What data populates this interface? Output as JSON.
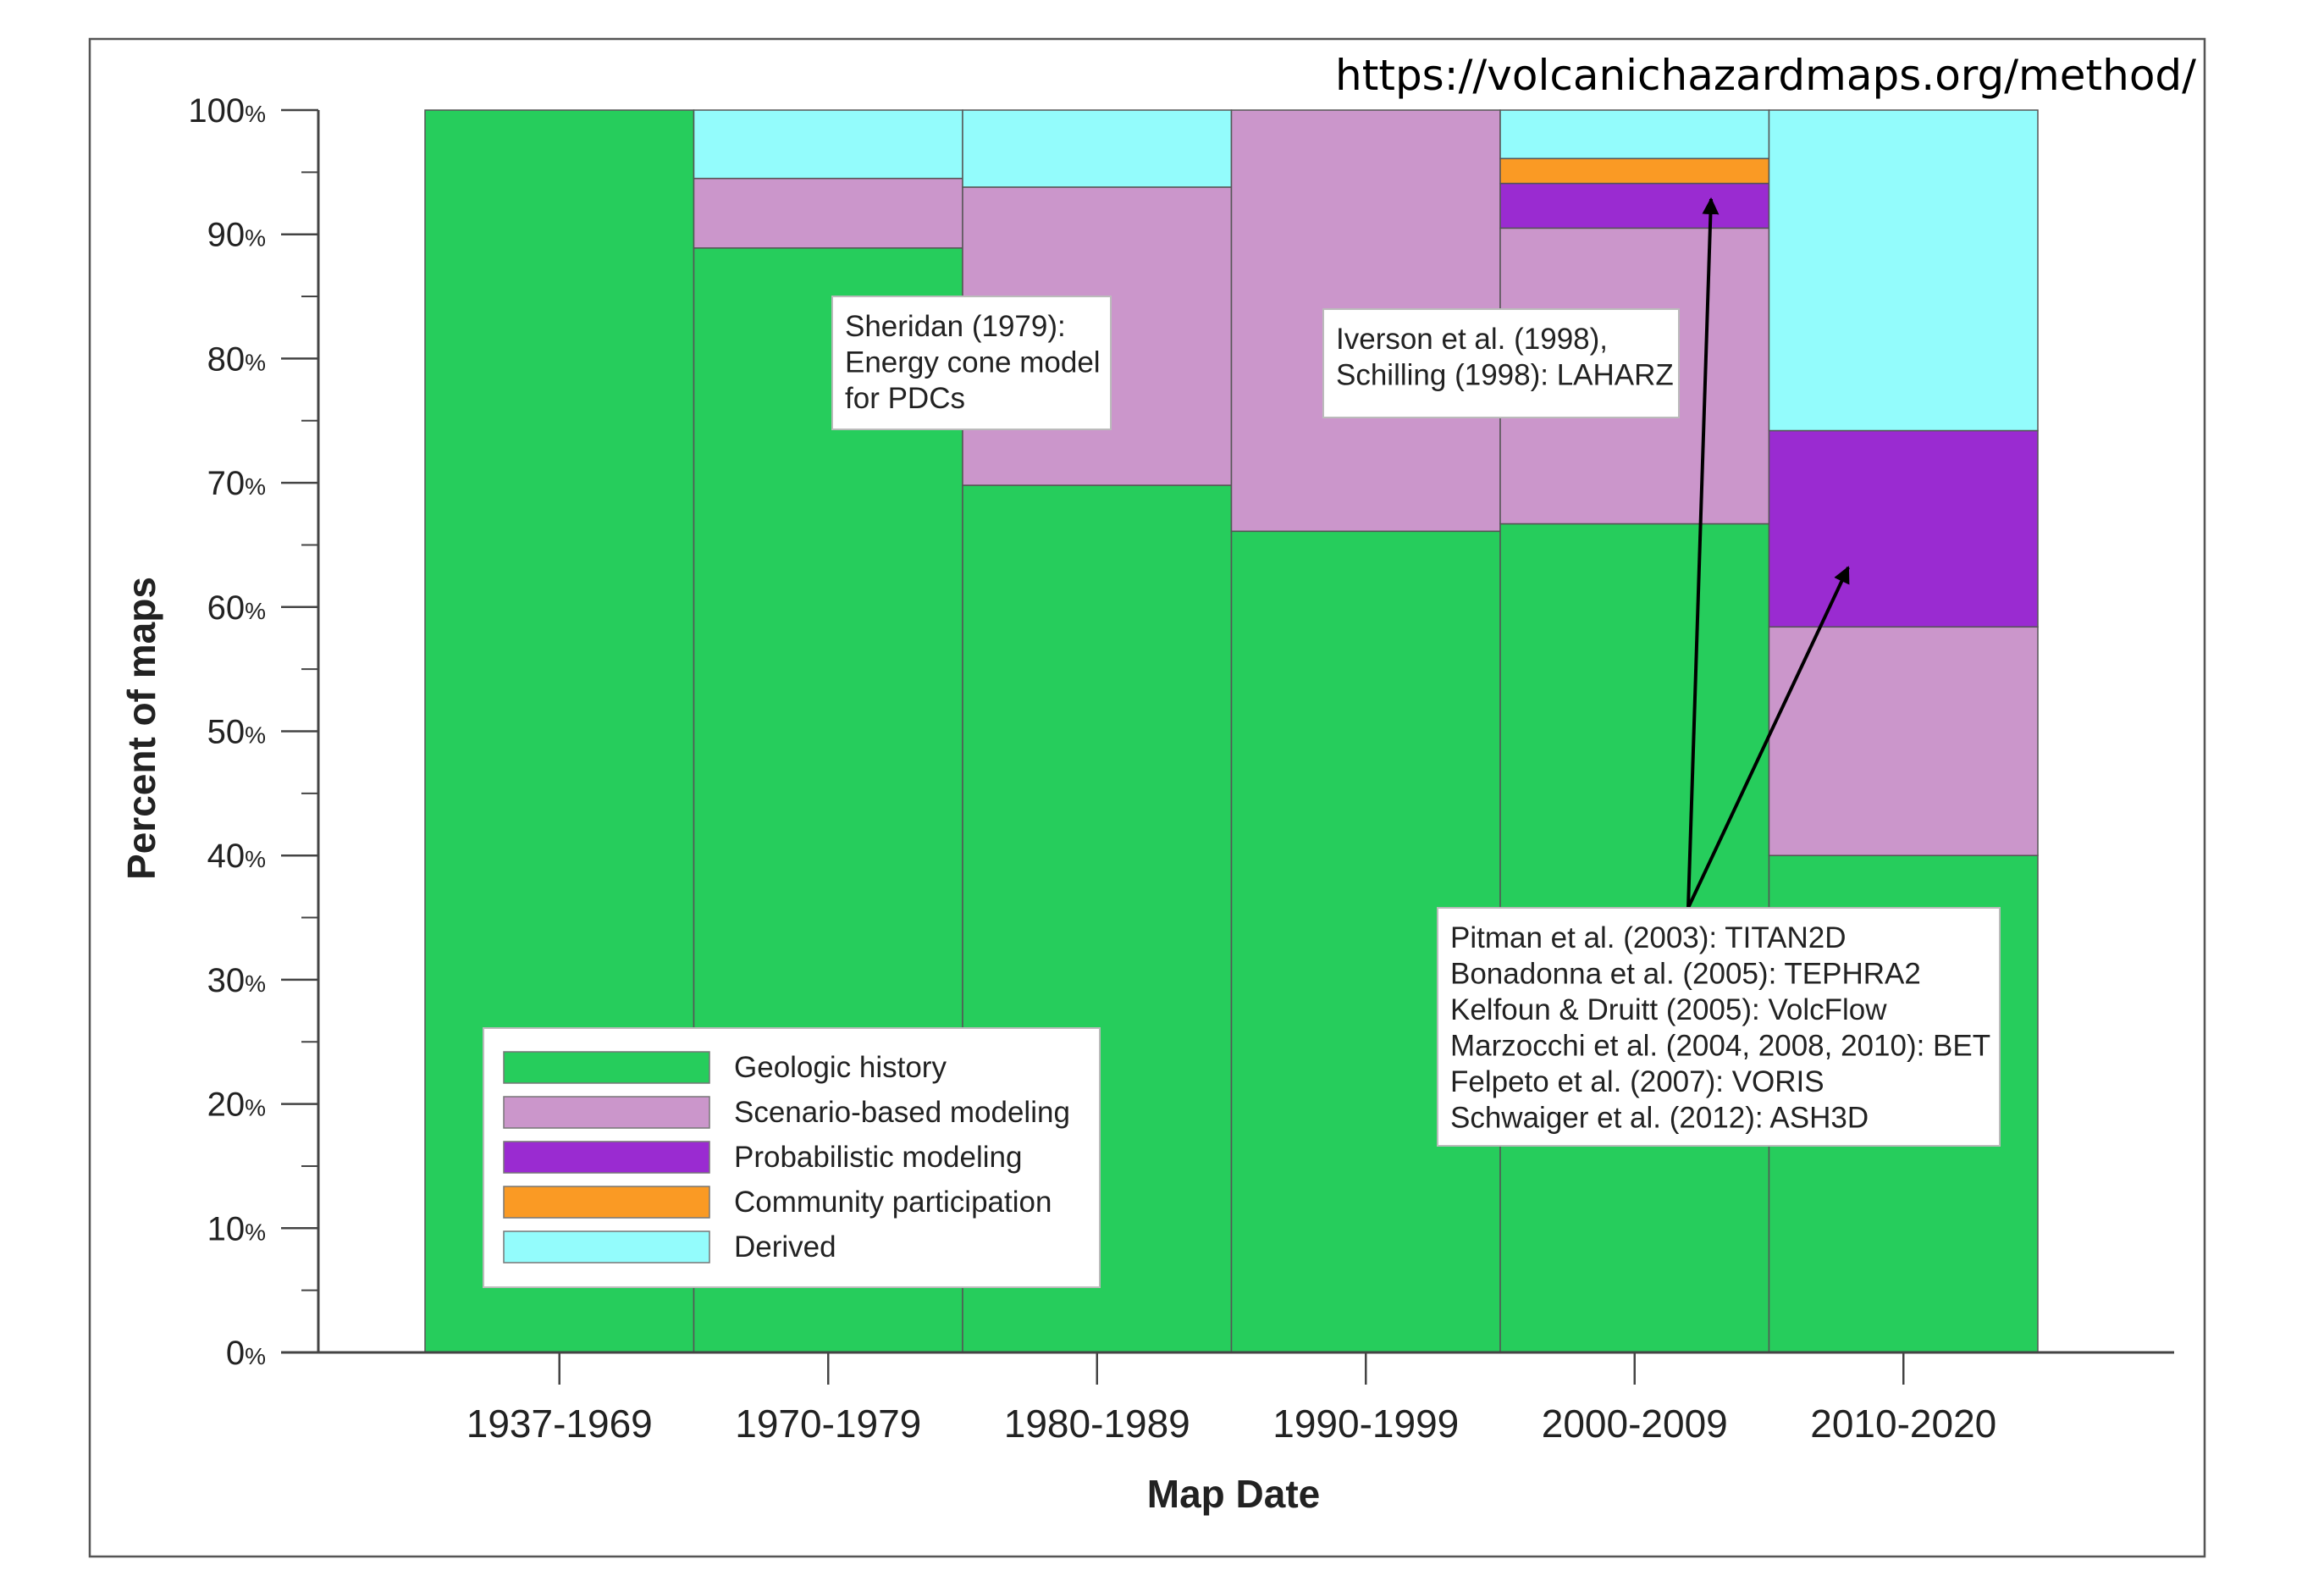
{
  "url": "https://volcanichazardmaps.org/method/",
  "chart_data": {
    "type": "bar",
    "stacked": true,
    "xlabel": "Map Date",
    "ylabel": "Percent of maps",
    "ylim": [
      0,
      100
    ],
    "y_ticks": [
      {
        "value": 0,
        "label": "0",
        "unit": "%"
      },
      {
        "value": 10,
        "label": "10",
        "unit": "%"
      },
      {
        "value": 20,
        "label": "20",
        "unit": "%"
      },
      {
        "value": 30,
        "label": "30",
        "unit": "%"
      },
      {
        "value": 40,
        "label": "40",
        "unit": "%"
      },
      {
        "value": 50,
        "label": "50",
        "unit": "%"
      },
      {
        "value": 60,
        "label": "60",
        "unit": "%"
      },
      {
        "value": 70,
        "label": "70",
        "unit": "%"
      },
      {
        "value": 80,
        "label": "80",
        "unit": "%"
      },
      {
        "value": 90,
        "label": "90",
        "unit": "%"
      },
      {
        "value": 100,
        "label": "100",
        "unit": "%"
      }
    ],
    "categories": [
      "1937-1969",
      "1970-1979",
      "1980-1989",
      "1990-1999",
      "2000-2009",
      "2010-2020"
    ],
    "series": [
      {
        "name": "Geologic history",
        "color": "#26cd5c",
        "values": [
          100,
          88.9,
          69.8,
          66.1,
          66.7,
          40.0
        ]
      },
      {
        "name": "Scenario-based modeling",
        "color": "#cb96cb",
        "values": [
          0,
          5.6,
          24.0,
          33.9,
          23.8,
          18.4
        ]
      },
      {
        "name": "Probabilistic modeling",
        "color": "#9a2bd1",
        "values": [
          0,
          0,
          0,
          0,
          3.6,
          15.8
        ]
      },
      {
        "name": "Community participation",
        "color": "#fa9a24",
        "values": [
          0,
          0,
          0,
          0,
          2.0,
          0
        ]
      },
      {
        "name": "Derived",
        "color": "#93fcfc",
        "values": [
          0,
          5.5,
          6.2,
          0,
          3.9,
          25.8
        ]
      }
    ],
    "legend_position": "bottom-left",
    "grid": false,
    "annotations": [
      {
        "lines": [
          "Sheridan (1979):",
          "Energy cone model",
          "for PDCs"
        ]
      },
      {
        "lines": [
          "Iverson et al. (1998),",
          "Schilling (1998): LAHARZ"
        ]
      },
      {
        "lines": [
          "Pitman et al. (2003): TITAN2D",
          "Bonadonna et al. (2005): TEPHRA2",
          "Kelfoun & Druitt (2005): VolcFlow",
          "Marzocchi et al. (2004, 2008, 2010): BET",
          "Felpeto et al. (2007): VORIS",
          "Schwaiger et al. (2012): ASH3D"
        ]
      }
    ]
  }
}
